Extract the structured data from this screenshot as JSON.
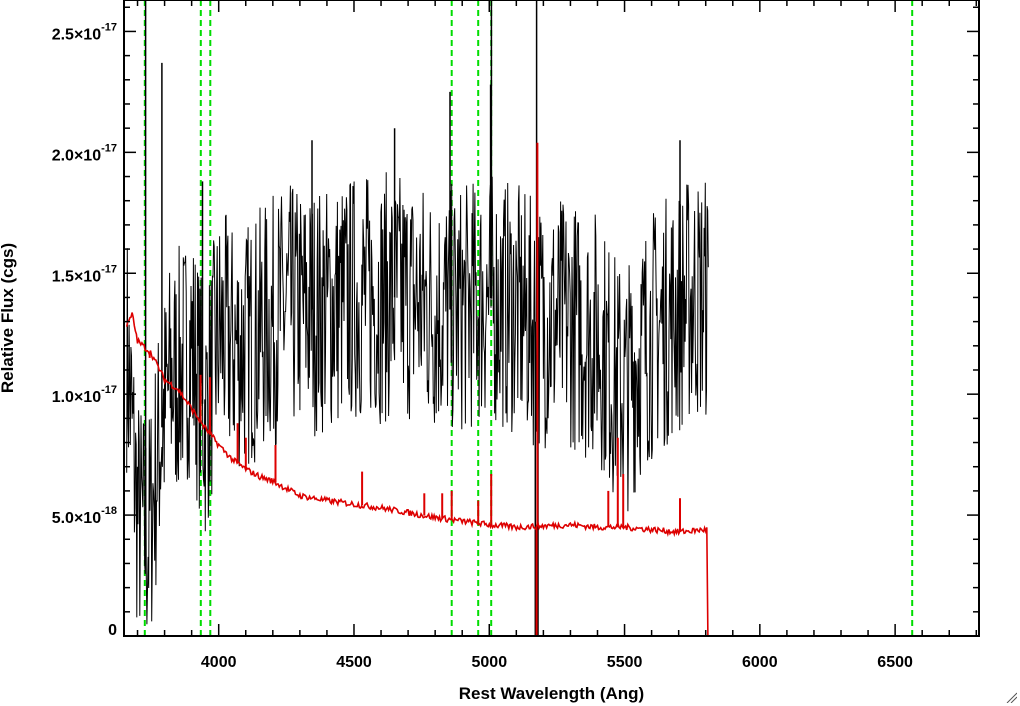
{
  "chart_data": {
    "type": "line",
    "title": "",
    "xlabel": "Rest Wavelength (Ang)",
    "ylabel": "Relative Flux (cgs)",
    "xlim": [
      3650,
      6810
    ],
    "ylim": [
      0,
      2.63e-17
    ],
    "x_ticks": [
      {
        "value": 4000,
        "label": "4000"
      },
      {
        "value": 4500,
        "label": "4500"
      },
      {
        "value": 5000,
        "label": "5000"
      },
      {
        "value": 5500,
        "label": "5500"
      },
      {
        "value": 6000,
        "label": "6000"
      },
      {
        "value": 6500,
        "label": "6500"
      }
    ],
    "y_ticks": [
      {
        "value": 0,
        "mantissa": "0",
        "exponent": ""
      },
      {
        "value": 5e-18,
        "mantissa": "5.0×10",
        "exponent": "-18"
      },
      {
        "value": 1e-17,
        "mantissa": "1.0×10",
        "exponent": "-17"
      },
      {
        "value": 1.5e-17,
        "mantissa": "1.5×10",
        "exponent": "-17"
      },
      {
        "value": 2e-17,
        "mantissa": "2.0×10",
        "exponent": "-17"
      },
      {
        "value": 2.5e-17,
        "mantissa": "2.5×10",
        "exponent": "-17"
      }
    ],
    "x_minor_step": 100,
    "y_minor_step": 1e-18,
    "grid": false,
    "emission_line_markers": {
      "color": "#00dd00",
      "style": "dashed",
      "x": [
        3727,
        3934,
        3969,
        4861,
        4959,
        5007,
        6563
      ]
    },
    "series": [
      {
        "color": "#000000",
        "style": "noisy",
        "x": [
          3660,
          3700,
          3740,
          3780,
          3820,
          3860,
          3900,
          3950,
          4000,
          4050,
          4100,
          4150,
          4200,
          4250,
          4300,
          4400,
          4500,
          4600,
          4700,
          4800,
          4900,
          5000,
          5100,
          5150,
          5200,
          5250,
          5300,
          5350,
          5400,
          5450,
          5500,
          5550,
          5600,
          5650,
          5700,
          5750,
          5800,
          5810
        ],
        "y": [
          1.2e-17,
          5e-18,
          4e-18,
          8e-18,
          1.05e-17,
          1.1e-17,
          1.2e-17,
          9e-18,
          1.25e-17,
          1.2e-17,
          1.2e-17,
          1.25e-17,
          1.3e-17,
          1.35e-17,
          1.35e-17,
          1.35e-17,
          1.4e-17,
          1.4e-17,
          1.4e-17,
          1.35e-17,
          1.35e-17,
          1.4e-17,
          1.35e-17,
          1.3e-17,
          1.3e-17,
          1.3e-17,
          1.3e-17,
          1.25e-17,
          1.25e-17,
          1.1e-17,
          1e-17,
          1.15e-17,
          1.25e-17,
          1.3e-17,
          1.35e-17,
          1.4e-17,
          1.4e-17,
          1.4e-17
        ],
        "spikes": [
          {
            "x": 3730,
            "y": 3e-17
          },
          {
            "x": 3790,
            "y": 2.37e-17
          },
          {
            "x": 4855,
            "y": 2.25e-17
          },
          {
            "x": 5005,
            "y": 2.28e-17
          },
          {
            "x": 5008,
            "y": 2.7e-17
          },
          {
            "x": 5175,
            "y": 2.7e-17
          },
          {
            "x": 5170,
            "y": 0
          },
          {
            "x": 5180,
            "y": 0
          },
          {
            "x": 3940,
            "y": 1.88e-17
          },
          {
            "x": 4650,
            "y": 2.1e-17
          },
          {
            "x": 4345,
            "y": 2.05e-17
          },
          {
            "x": 5705,
            "y": 2.05e-17
          }
        ]
      },
      {
        "color": "#dd0000",
        "style": "smooth",
        "x": [
          3660,
          3680,
          3700,
          3750,
          3800,
          3850,
          3900,
          3950,
          4000,
          4050,
          4100,
          4150,
          4200,
          4300,
          4400,
          4500,
          4600,
          4700,
          4800,
          4900,
          5000,
          5100,
          5200,
          5300,
          5400,
          5500,
          5600,
          5700,
          5800,
          5805,
          5810,
          6000,
          6500,
          6810
        ],
        "y": [
          1.28e-17,
          1.33e-17,
          1.22e-17,
          1.17e-17,
          1.06e-17,
          1.02e-17,
          9.4e-18,
          8.6e-18,
          7.9e-18,
          7.3e-18,
          6.9e-18,
          6.6e-18,
          6.4e-18,
          5.8e-18,
          5.6e-18,
          5.45e-18,
          5.3e-18,
          5.1e-18,
          4.9e-18,
          4.75e-18,
          4.6e-18,
          4.5e-18,
          4.55e-18,
          4.6e-18,
          4.5e-18,
          4.5e-18,
          4.4e-18,
          4.3e-18,
          4.4e-18,
          4.4e-18,
          0,
          0,
          0,
          0
        ],
        "spikes": [
          {
            "x": 3745,
            "y": 1.15e-17
          },
          {
            "x": 3933,
            "y": 1.08e-17
          },
          {
            "x": 3968,
            "y": 1.07e-17
          },
          {
            "x": 4070,
            "y": 8.8e-18
          },
          {
            "x": 4100,
            "y": 8.2e-18
          },
          {
            "x": 4210,
            "y": 7.9e-18
          },
          {
            "x": 4530,
            "y": 6.8e-18
          },
          {
            "x": 4760,
            "y": 5.9e-18
          },
          {
            "x": 4826,
            "y": 5.9e-18
          },
          {
            "x": 4861,
            "y": 6e-18
          },
          {
            "x": 4959,
            "y": 5.6e-18
          },
          {
            "x": 5007,
            "y": 6.7e-18
          },
          {
            "x": 5178,
            "y": 2.04e-17
          },
          {
            "x": 5175,
            "y": 0
          },
          {
            "x": 5440,
            "y": 6e-18
          },
          {
            "x": 5475,
            "y": 8.2e-18
          },
          {
            "x": 5495,
            "y": 6.7e-18
          },
          {
            "x": 5705,
            "y": 5.7e-18
          }
        ]
      }
    ]
  }
}
